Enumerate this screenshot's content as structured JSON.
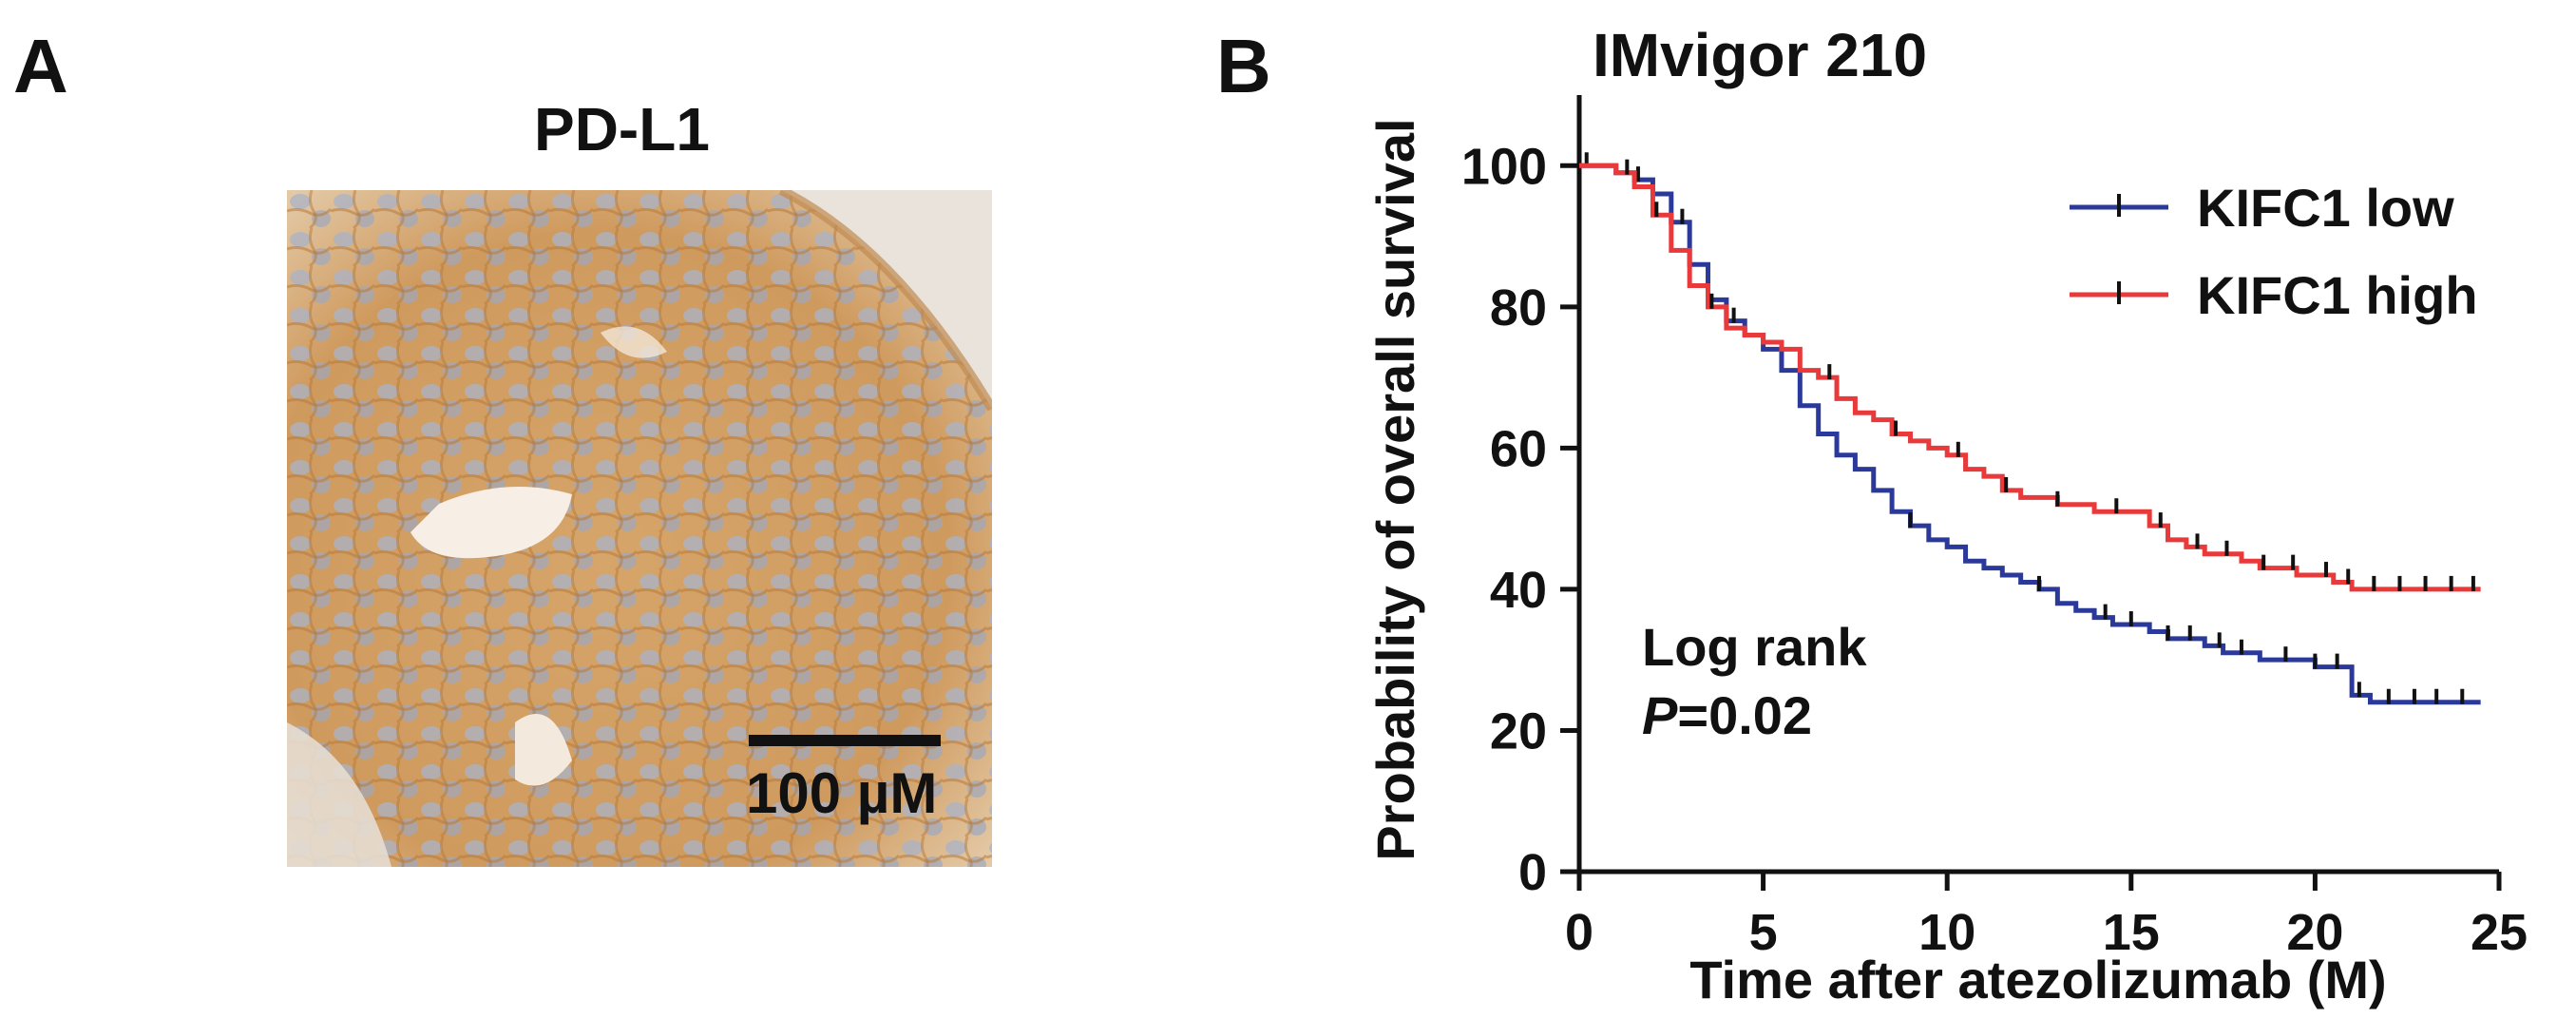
{
  "panel_a": {
    "letter": "A",
    "title": "PD-L1",
    "scale_label": "100 µM"
  },
  "panel_b": {
    "letter": "B"
  },
  "colors": {
    "low": "#2b3a9a",
    "high": "#e8393b",
    "stain_brown": "#c8955a",
    "nuclei": "#a9b2c8"
  },
  "chart_data": {
    "type": "line",
    "subtype": "kaplan-meier",
    "title": "IMvigor 210",
    "xlabel": "Time after atezolizumab (M)",
    "ylabel": "Probability of overall survival",
    "xlim": [
      0,
      25
    ],
    "ylim": [
      0,
      110
    ],
    "xticks": [
      "0",
      "5",
      "10",
      "15",
      "20",
      "25"
    ],
    "yticks": [
      "0",
      "20",
      "40",
      "60",
      "80",
      "100"
    ],
    "legend_position": "top-right",
    "annotation": {
      "line1": "Log rank",
      "p_italic": "P",
      "p_value": "=0.02"
    },
    "series": [
      {
        "name": "KIFC1 low",
        "color_key": "low",
        "x": [
          0,
          0.5,
          1.0,
          1.5,
          2.0,
          2.5,
          3.0,
          3.5,
          4.0,
          4.5,
          5.0,
          5.5,
          6.0,
          6.5,
          7.0,
          7.5,
          8.0,
          8.5,
          9.0,
          9.5,
          10.0,
          10.5,
          11.0,
          11.5,
          12.0,
          12.5,
          13.0,
          13.5,
          14.0,
          14.5,
          15.0,
          15.5,
          16.0,
          16.5,
          17.0,
          17.5,
          18.0,
          18.5,
          19.0,
          19.5,
          20.0,
          20.5,
          21.0,
          21.5,
          22.0,
          22.5,
          23.0,
          23.5,
          24.0,
          24.5
        ],
        "y": [
          100,
          100,
          99,
          98,
          96,
          92,
          86,
          81,
          78,
          76,
          74,
          71,
          66,
          62,
          59,
          57,
          54,
          51,
          49,
          47,
          46,
          44,
          43,
          42,
          41,
          40,
          38,
          37,
          36,
          35,
          35,
          34,
          33,
          33,
          32,
          31,
          31,
          30,
          30,
          30,
          29,
          29,
          25,
          24,
          24,
          24,
          24,
          24,
          24,
          24
        ],
        "censor_x": [
          0.2,
          1.6,
          2.8,
          4.2,
          9.0,
          12.5,
          14.3,
          15.0,
          16.0,
          16.6,
          17.4,
          18.0,
          19.2,
          20.0,
          20.6,
          21.2,
          22.0,
          22.7,
          23.3,
          24.0
        ]
      },
      {
        "name": "KIFC1 high",
        "color_key": "high",
        "x": [
          0,
          0.5,
          1.0,
          1.5,
          2.0,
          2.5,
          3.0,
          3.5,
          4.0,
          4.5,
          5.0,
          5.5,
          6.0,
          6.5,
          7.0,
          7.5,
          8.0,
          8.5,
          9.0,
          9.5,
          10.0,
          10.5,
          11.0,
          11.5,
          12.0,
          12.5,
          13.0,
          13.5,
          14.0,
          14.5,
          15.0,
          15.5,
          16.0,
          16.5,
          17.0,
          17.5,
          18.0,
          18.5,
          19.0,
          19.5,
          20.0,
          20.5,
          21.0,
          21.5,
          22.0,
          22.5,
          23.0,
          23.5,
          24.0,
          24.5
        ],
        "y": [
          100,
          100,
          99,
          97,
          93,
          88,
          83,
          80,
          77,
          76,
          75,
          74,
          71,
          70,
          67,
          65,
          64,
          62,
          61,
          60,
          59,
          57,
          56,
          54,
          53,
          53,
          52,
          52,
          51,
          51,
          51,
          49,
          47,
          46,
          45,
          45,
          44,
          43,
          43,
          42,
          42,
          41,
          40,
          40,
          40,
          40,
          40,
          40,
          40,
          40
        ],
        "censor_x": [
          1.3,
          2.1,
          3.6,
          6.8,
          8.6,
          10.3,
          11.6,
          13.0,
          14.6,
          15.8,
          16.8,
          17.6,
          18.6,
          19.4,
          20.3,
          20.9,
          21.6,
          22.3,
          23.0,
          23.7,
          24.3
        ]
      }
    ]
  }
}
